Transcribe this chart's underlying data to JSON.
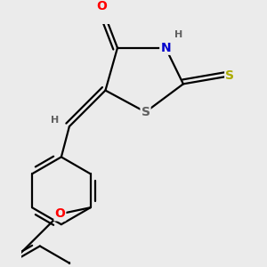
{
  "bg_color": "#ebebeb",
  "bond_color": "#000000",
  "atom_colors": {
    "O": "#ff0000",
    "N": "#0000cc",
    "S_ring": "#606060",
    "S_exo": "#aaaa00",
    "H": "#606060"
  },
  "font_size_atoms": 10,
  "font_size_H": 8
}
